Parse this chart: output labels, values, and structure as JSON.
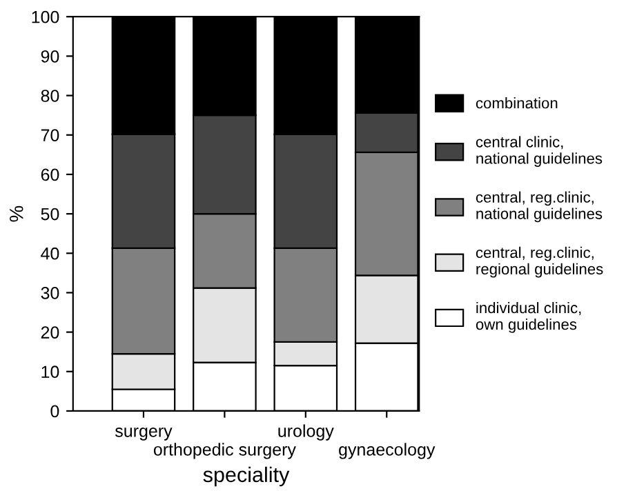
{
  "chart_data": {
    "type": "bar",
    "stacked": true,
    "xlabel": "speciality",
    "ylabel": "%",
    "categories": [
      "surgery",
      "orthopedic surgery",
      "urology",
      "gynaecology"
    ],
    "series": [
      {
        "name": "individual clinic,\nown guidelines",
        "color": "#ffffff",
        "values": [
          5.5,
          12.3,
          11.5,
          17.2
        ]
      },
      {
        "name": "central, reg.clinic,\nregional guidelines",
        "color": "#e4e4e4",
        "values": [
          9,
          18.9,
          6,
          17.2
        ]
      },
      {
        "name": "central, reg.clinic,\nnational guidelines",
        "color": "#808080",
        "values": [
          26.8,
          18.8,
          23.8,
          31.2
        ]
      },
      {
        "name": "central clinic,\nnational guidelines",
        "color": "#444444",
        "values": [
          28.9,
          25,
          28.9,
          10
        ]
      },
      {
        "name": "combination",
        "color": "#000000",
        "values": [
          29.8,
          25,
          29.8,
          24.4
        ]
      }
    ],
    "ylim": [
      0,
      100
    ],
    "yticks": [
      0,
      10,
      20,
      30,
      40,
      50,
      60,
      70,
      80,
      90,
      100
    ],
    "grid": false,
    "legend": "right"
  }
}
